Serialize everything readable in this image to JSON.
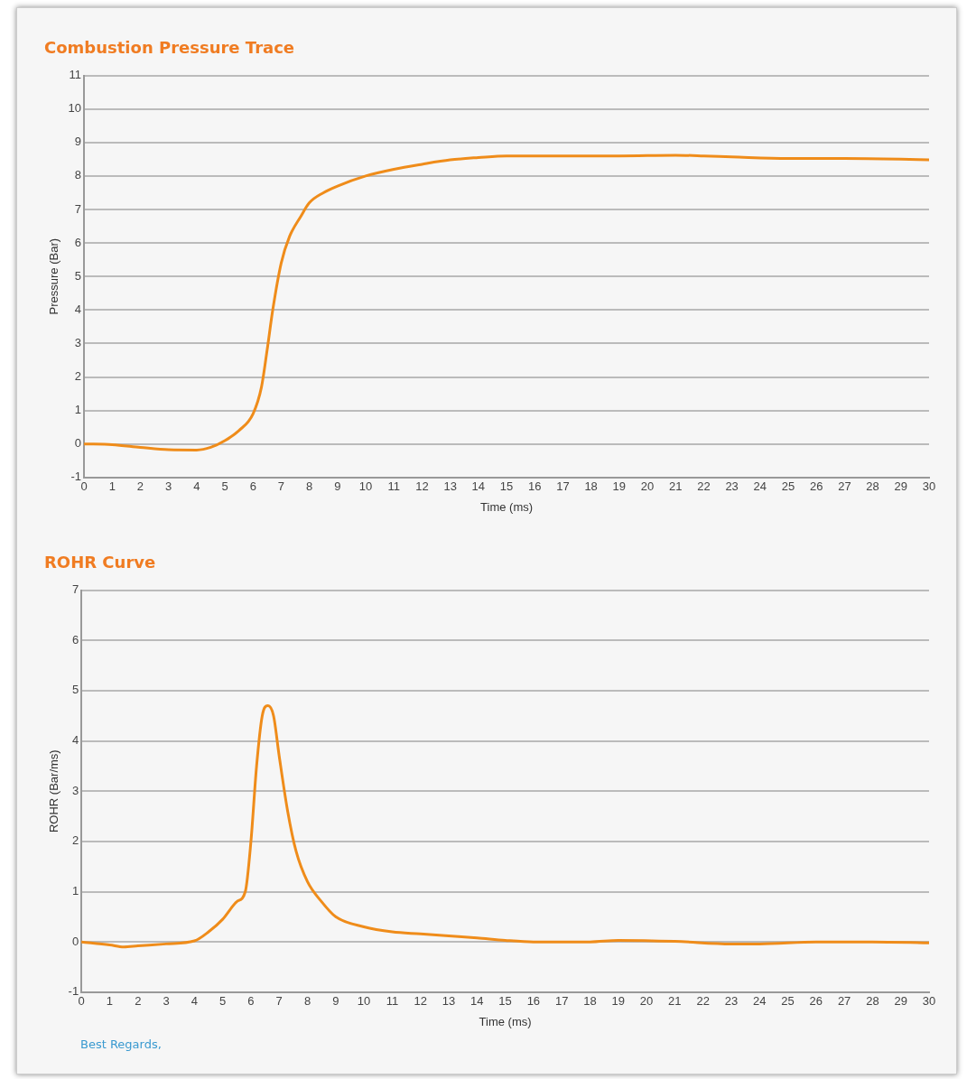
{
  "chart_data": [
    {
      "type": "line",
      "title": "Combustion Pressure Trace",
      "xlabel": "Time (ms)",
      "ylabel": "Pressure (Bar)",
      "xlim": [
        0,
        30
      ],
      "xticks": [
        0,
        1,
        2,
        3,
        4,
        5,
        6,
        7,
        8,
        9,
        10,
        11,
        12,
        13,
        14,
        15,
        16,
        17,
        18,
        19,
        20,
        21,
        22,
        23,
        24,
        25,
        26,
        27,
        28,
        29,
        30
      ],
      "ylim": [
        -1,
        11
      ],
      "yticks": [
        -1,
        0,
        1,
        2,
        3,
        4,
        5,
        6,
        7,
        8,
        9,
        10,
        11
      ],
      "grid": "y",
      "marker": "none",
      "line_style": "solid",
      "series": [
        {
          "color": "#ef8c1a",
          "x": [
            0,
            1,
            2,
            3,
            4,
            4.5,
            5,
            5.5,
            6,
            6.3,
            6.5,
            6.7,
            7,
            7.3,
            7.7,
            8,
            8.5,
            9,
            10,
            11,
            12,
            13,
            14,
            15,
            17,
            19,
            21,
            22,
            23,
            25,
            27,
            29,
            30
          ],
          "values": [
            0,
            -0.02,
            -0.1,
            -0.17,
            -0.18,
            -0.1,
            0.1,
            0.4,
            0.9,
            1.7,
            2.8,
            4,
            5.4,
            6.2,
            6.8,
            7.2,
            7.5,
            7.7,
            8,
            8.2,
            8.35,
            8.48,
            8.55,
            8.6,
            8.6,
            8.6,
            8.62,
            8.6,
            8.57,
            8.52,
            8.52,
            8.5,
            8.48
          ]
        }
      ]
    },
    {
      "type": "line",
      "title": "ROHR Curve",
      "xlabel": "Time (ms)",
      "ylabel": "ROHR (Bar/ms)",
      "xlim": [
        0,
        30
      ],
      "xticks": [
        0,
        1,
        2,
        3,
        4,
        5,
        6,
        7,
        8,
        9,
        10,
        11,
        12,
        13,
        14,
        15,
        16,
        17,
        18,
        19,
        20,
        21,
        22,
        23,
        24,
        25,
        26,
        27,
        28,
        29,
        30
      ],
      "ylim": [
        -1,
        7
      ],
      "yticks": [
        -1,
        0,
        1,
        2,
        3,
        4,
        5,
        6,
        7
      ],
      "grid": "y",
      "marker": "none",
      "line_style": "solid",
      "annotations": [
        "Best Regards,"
      ],
      "series": [
        {
          "color": "#ef8c1a",
          "x": [
            0,
            1,
            1.5,
            2,
            3,
            4,
            4.5,
            5,
            5.5,
            5.8,
            6,
            6.2,
            6.4,
            6.6,
            6.8,
            7,
            7.3,
            7.6,
            8,
            8.5,
            9,
            10,
            11,
            12,
            13,
            14,
            15,
            16,
            18,
            19,
            21,
            23,
            24,
            26,
            28,
            30
          ],
          "values": [
            0,
            -0.06,
            -0.1,
            -0.08,
            -0.04,
            0.02,
            0.2,
            0.45,
            0.8,
            1,
            2,
            3.5,
            4.5,
            4.7,
            4.5,
            3.7,
            2.6,
            1.8,
            1.2,
            0.8,
            0.5,
            0.3,
            0.2,
            0.16,
            0.12,
            0.08,
            0.03,
            0,
            0,
            0.03,
            0.01,
            -0.04,
            -0.04,
            0,
            0,
            -0.02
          ]
        }
      ]
    }
  ]
}
